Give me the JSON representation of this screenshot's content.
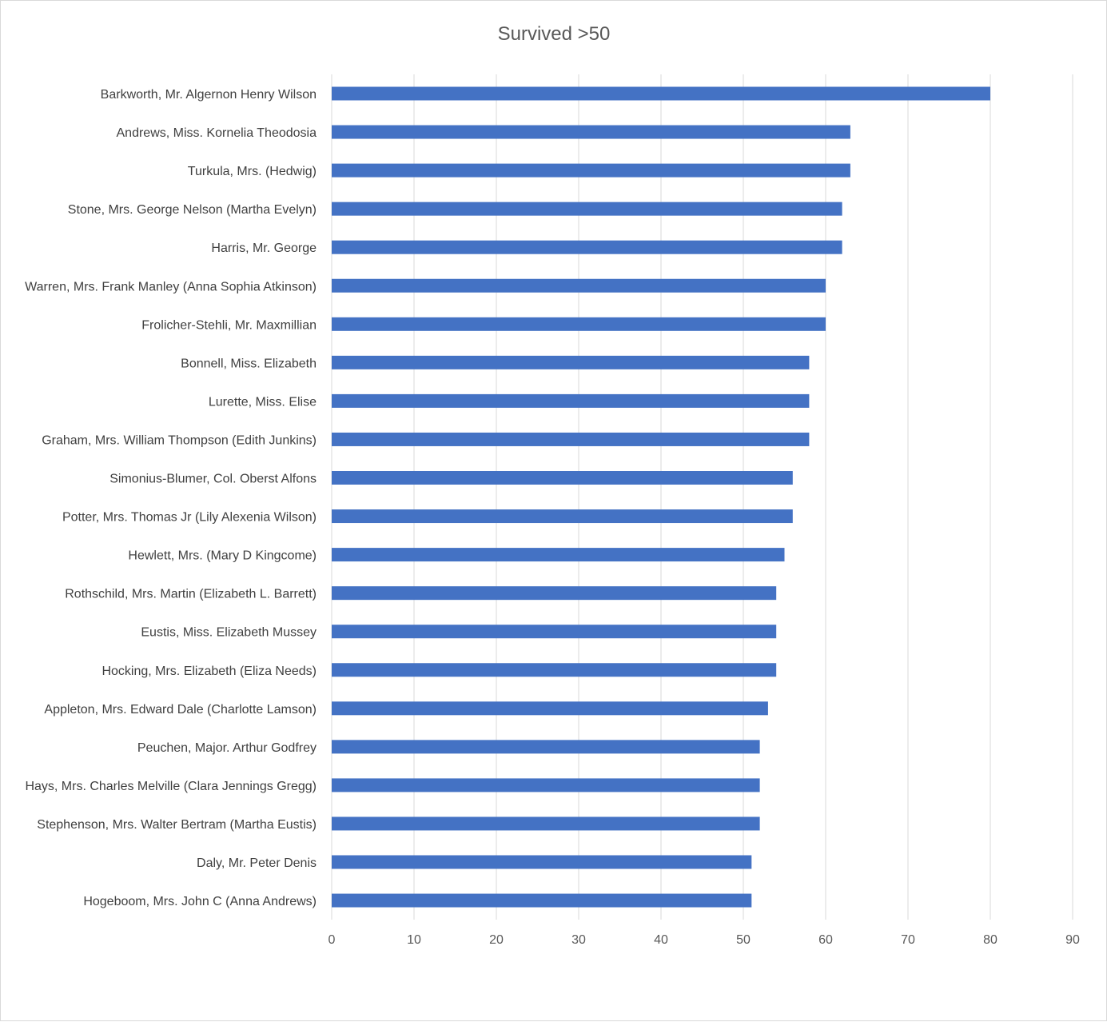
{
  "chart_data": {
    "type": "bar",
    "orientation": "horizontal",
    "title": "Survived >50",
    "xlabel": "",
    "ylabel": "",
    "xlim": [
      0,
      90
    ],
    "xticks": [
      0,
      10,
      20,
      30,
      40,
      50,
      60,
      70,
      80,
      90
    ],
    "grid": true,
    "legend": "none",
    "bar_color": "#4472C4",
    "categories": [
      "Barkworth, Mr. Algernon Henry Wilson",
      "Andrews, Miss. Kornelia Theodosia",
      "Turkula, Mrs. (Hedwig)",
      "Stone, Mrs. George Nelson (Martha Evelyn)",
      "Harris, Mr. George",
      "Warren, Mrs. Frank Manley (Anna Sophia Atkinson)",
      "Frolicher-Stehli, Mr. Maxmillian",
      "Bonnell, Miss. Elizabeth",
      "Lurette, Miss. Elise",
      "Graham, Mrs. William Thompson (Edith Junkins)",
      "Simonius-Blumer, Col. Oberst Alfons",
      "Potter, Mrs. Thomas Jr (Lily Alexenia Wilson)",
      "Hewlett, Mrs. (Mary D Kingcome)",
      "Rothschild, Mrs. Martin (Elizabeth L. Barrett)",
      "Eustis, Miss. Elizabeth Mussey",
      "Hocking, Mrs. Elizabeth (Eliza Needs)",
      "Appleton, Mrs. Edward Dale (Charlotte Lamson)",
      "Peuchen, Major. Arthur Godfrey",
      "Hays, Mrs. Charles Melville (Clara Jennings Gregg)",
      "Stephenson, Mrs. Walter Bertram (Martha Eustis)",
      "Daly, Mr. Peter Denis",
      "Hogeboom, Mrs. John C (Anna Andrews)"
    ],
    "values": [
      80,
      63,
      63,
      62,
      62,
      60,
      60,
      58,
      58,
      58,
      56,
      56,
      55,
      54,
      54,
      54,
      53,
      52,
      52,
      52,
      51,
      51
    ]
  }
}
